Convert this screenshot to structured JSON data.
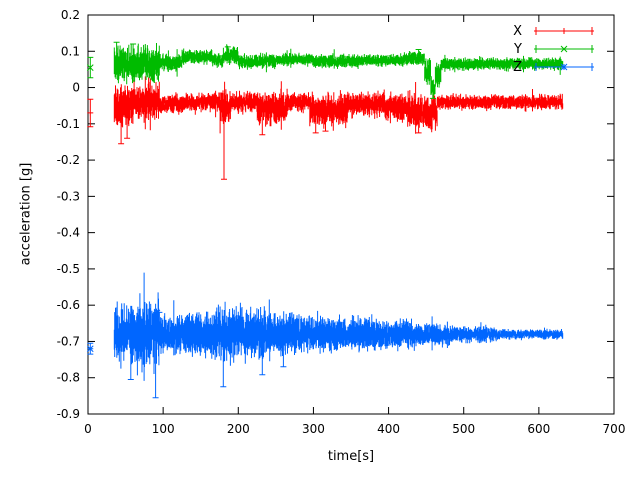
{
  "chart_data": {
    "type": "line",
    "style": "errorbars",
    "title": "",
    "xlabel": "time[s]",
    "ylabel": "acceleration [g]",
    "xlim": [
      0,
      700
    ],
    "ylim": [
      -0.9,
      0.2
    ],
    "xticks": [
      0,
      100,
      200,
      300,
      400,
      500,
      600,
      700
    ],
    "yticks": [
      0.2,
      0.1,
      0,
      -0.1,
      -0.2,
      -0.3,
      -0.4,
      -0.5,
      -0.6,
      -0.7,
      -0.8,
      -0.9
    ],
    "grid": false,
    "legend": {
      "position": "top-right",
      "entries": [
        "X",
        "Y",
        "Z"
      ]
    },
    "seed": 1337,
    "sample_step": 0.55,
    "series": [
      {
        "name": "X",
        "color": "#ff0000",
        "marker": "plus",
        "approx_mean": -0.045,
        "initial_point": {
          "t": 3,
          "v": -0.07,
          "err": 0.038
        },
        "segments": [
          [
            35,
            60,
            -0.05,
            0.035
          ],
          [
            60,
            95,
            -0.04,
            0.03
          ],
          [
            95,
            130,
            -0.045,
            0.015
          ],
          [
            130,
            175,
            -0.04,
            0.015
          ],
          [
            175,
            190,
            -0.05,
            0.03
          ],
          [
            190,
            225,
            -0.04,
            0.018
          ],
          [
            225,
            265,
            -0.055,
            0.028
          ],
          [
            265,
            295,
            -0.04,
            0.015
          ],
          [
            295,
            345,
            -0.06,
            0.028
          ],
          [
            345,
            395,
            -0.045,
            0.02
          ],
          [
            395,
            425,
            -0.055,
            0.025
          ],
          [
            425,
            465,
            -0.068,
            0.028
          ],
          [
            465,
            632,
            -0.04,
            0.012
          ]
        ],
        "spikes": [
          [
            44,
            -0.155
          ],
          [
            52,
            -0.14
          ],
          [
            181,
            -0.253
          ],
          [
            232,
            -0.13
          ],
          [
            303,
            -0.125
          ],
          [
            316,
            -0.12
          ],
          [
            440,
            -0.125
          ]
        ]
      },
      {
        "name": "Y",
        "color": "#00bb00",
        "marker": "cross",
        "approx_mean": 0.072,
        "initial_point": {
          "t": 3,
          "v": 0.055,
          "err": 0.028
        },
        "segments": [
          [
            35,
            95,
            0.065,
            0.03
          ],
          [
            95,
            125,
            0.07,
            0.015
          ],
          [
            125,
            165,
            0.085,
            0.012
          ],
          [
            165,
            180,
            0.075,
            0.012
          ],
          [
            180,
            200,
            0.088,
            0.015
          ],
          [
            200,
            250,
            0.072,
            0.012
          ],
          [
            250,
            300,
            0.078,
            0.01
          ],
          [
            300,
            360,
            0.072,
            0.012
          ],
          [
            360,
            420,
            0.075,
            0.01
          ],
          [
            420,
            448,
            0.08,
            0.012
          ],
          [
            448,
            456,
            0.045,
            0.025
          ],
          [
            456,
            462,
            0.0,
            0.018
          ],
          [
            462,
            470,
            0.035,
            0.02
          ],
          [
            470,
            632,
            0.065,
            0.01
          ]
        ],
        "spikes": [
          [
            38,
            0.125
          ],
          [
            60,
            0.12
          ],
          [
            186,
            0.112
          ],
          [
            440,
            0.105
          ],
          [
            459,
            -0.03
          ]
        ]
      },
      {
        "name": "Z",
        "color": "#0066ff",
        "marker": "asterisk",
        "approx_mean": -0.68,
        "initial_point": {
          "t": 3,
          "v": -0.72,
          "err": 0.015
        },
        "segments": [
          [
            35,
            55,
            -0.675,
            0.045
          ],
          [
            55,
            95,
            -0.675,
            0.058
          ],
          [
            95,
            130,
            -0.68,
            0.03
          ],
          [
            130,
            170,
            -0.68,
            0.035
          ],
          [
            170,
            195,
            -0.68,
            0.048
          ],
          [
            195,
            245,
            -0.677,
            0.042
          ],
          [
            245,
            285,
            -0.68,
            0.035
          ],
          [
            285,
            335,
            -0.679,
            0.03
          ],
          [
            335,
            385,
            -0.68,
            0.027
          ],
          [
            385,
            435,
            -0.681,
            0.024
          ],
          [
            435,
            485,
            -0.682,
            0.018
          ],
          [
            485,
            545,
            -0.68,
            0.013
          ],
          [
            545,
            632,
            -0.68,
            0.008
          ]
        ],
        "spikes": [
          [
            57,
            -0.805
          ],
          [
            90,
            -0.855
          ],
          [
            92,
            -0.615
          ],
          [
            95,
            -0.62
          ],
          [
            180,
            -0.825
          ],
          [
            232,
            -0.792
          ],
          [
            260,
            -0.77
          ]
        ]
      }
    ]
  }
}
